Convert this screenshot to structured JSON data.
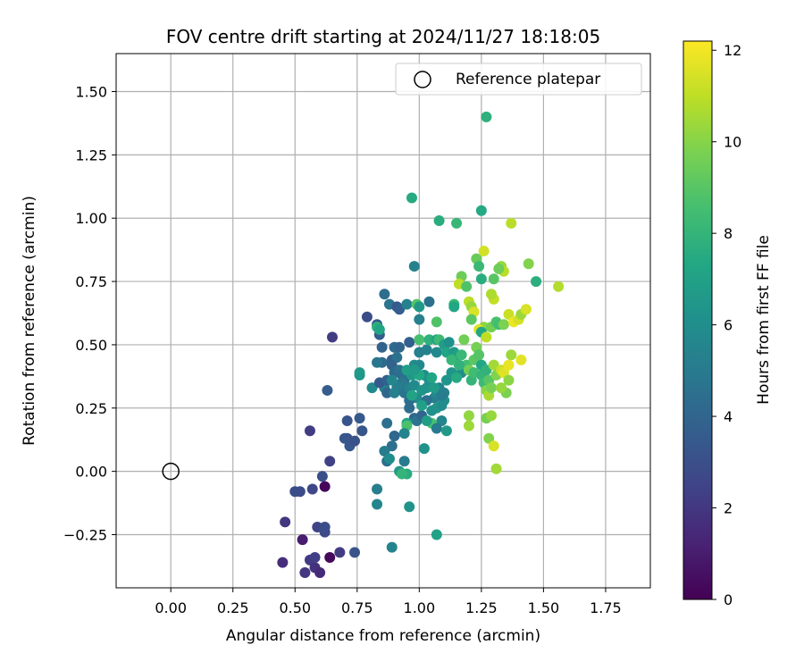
{
  "chart_data": {
    "type": "scatter",
    "title": "FOV centre drift starting at 2024/11/27 18:18:05",
    "xlabel": "Angular distance from reference (arcmin)",
    "ylabel": "Rotation from reference (arcmin)",
    "xlim": [
      -0.22,
      1.93
    ],
    "ylim": [
      -0.46,
      1.65
    ],
    "xticks": [
      "0.00",
      "0.25",
      "0.50",
      "0.75",
      "1.00",
      "1.25",
      "1.50",
      "1.75"
    ],
    "xtick_values": [
      0,
      0.25,
      0.5,
      0.75,
      1.0,
      1.25,
      1.5,
      1.75
    ],
    "yticks": [
      "−0.25",
      "0.00",
      "0.25",
      "0.50",
      "0.75",
      "1.00",
      "1.25",
      "1.50"
    ],
    "ytick_values": [
      -0.25,
      0,
      0.25,
      0.5,
      0.75,
      1.0,
      1.25,
      1.5
    ],
    "grid": true,
    "legend": {
      "label": "Reference platepar",
      "position": "upper right"
    },
    "reference_point": {
      "x": 0.0,
      "y": 0.0
    },
    "colorbar": {
      "label": "Hours from first FF file",
      "colormap": "viridis",
      "range": [
        0,
        12.2
      ],
      "ticks": [
        "0",
        "2",
        "4",
        "6",
        "8",
        "10",
        "12"
      ],
      "tick_values": [
        0,
        2,
        4,
        6,
        8,
        10,
        12
      ]
    },
    "points": [
      {
        "x": 0.62,
        "y": -0.06,
        "h": 0.2
      },
      {
        "x": 0.64,
        "y": -0.34,
        "h": 0.3
      },
      {
        "x": 0.53,
        "y": -0.27,
        "h": 1.0
      },
      {
        "x": 0.46,
        "y": -0.2,
        "h": 2.0
      },
      {
        "x": 0.45,
        "y": -0.36,
        "h": 1.6
      },
      {
        "x": 0.54,
        "y": -0.4,
        "h": 2.0
      },
      {
        "x": 0.56,
        "y": -0.35,
        "h": 2.1
      },
      {
        "x": 0.58,
        "y": -0.38,
        "h": 1.8
      },
      {
        "x": 0.6,
        "y": -0.4,
        "h": 1.5
      },
      {
        "x": 0.58,
        "y": -0.34,
        "h": 2.3
      },
      {
        "x": 0.59,
        "y": -0.22,
        "h": 2.5
      },
      {
        "x": 0.62,
        "y": -0.24,
        "h": 2.7
      },
      {
        "x": 0.62,
        "y": -0.22,
        "h": 2.9
      },
      {
        "x": 0.68,
        "y": -0.32,
        "h": 2.2
      },
      {
        "x": 0.74,
        "y": -0.32,
        "h": 3.2
      },
      {
        "x": 0.57,
        "y": -0.07,
        "h": 2.6
      },
      {
        "x": 0.61,
        "y": -0.02,
        "h": 3.0
      },
      {
        "x": 0.52,
        "y": -0.08,
        "h": 2.8
      },
      {
        "x": 0.5,
        "y": -0.08,
        "h": 2.9
      },
      {
        "x": 0.64,
        "y": 0.04,
        "h": 2.4
      },
      {
        "x": 0.56,
        "y": 0.16,
        "h": 2.2
      },
      {
        "x": 0.63,
        "y": 0.32,
        "h": 3.6
      },
      {
        "x": 0.65,
        "y": 0.53,
        "h": 2.2
      },
      {
        "x": 0.71,
        "y": 0.13,
        "h": 3.0
      },
      {
        "x": 0.72,
        "y": 0.1,
        "h": 3.4
      },
      {
        "x": 0.74,
        "y": 0.12,
        "h": 3.1
      },
      {
        "x": 0.71,
        "y": 0.2,
        "h": 3.2
      },
      {
        "x": 0.76,
        "y": 0.21,
        "h": 3.5
      },
      {
        "x": 0.77,
        "y": 0.16,
        "h": 3.3
      },
      {
        "x": 0.7,
        "y": 0.13,
        "h": 3.3
      },
      {
        "x": 0.79,
        "y": 0.61,
        "h": 2.9
      },
      {
        "x": 0.83,
        "y": 0.58,
        "h": 3.4
      },
      {
        "x": 0.84,
        "y": 0.54,
        "h": 3.6
      },
      {
        "x": 0.85,
        "y": 0.49,
        "h": 3.8
      },
      {
        "x": 0.86,
        "y": 0.7,
        "h": 4.4
      },
      {
        "x": 0.88,
        "y": 0.66,
        "h": 4.7
      },
      {
        "x": 0.85,
        "y": 0.43,
        "h": 4.2
      },
      {
        "x": 0.83,
        "y": 0.43,
        "h": 4.8
      },
      {
        "x": 0.76,
        "y": 0.38,
        "h": 6.4
      },
      {
        "x": 0.76,
        "y": 0.39,
        "h": 6.6
      },
      {
        "x": 0.81,
        "y": 0.33,
        "h": 5.8
      },
      {
        "x": 0.86,
        "y": 0.33,
        "h": 5.4
      },
      {
        "x": 0.84,
        "y": 0.35,
        "h": 3.5
      },
      {
        "x": 0.87,
        "y": 0.36,
        "h": 3.8
      },
      {
        "x": 0.87,
        "y": 0.31,
        "h": 4.1
      },
      {
        "x": 0.83,
        "y": 0.57,
        "h": 7.8
      },
      {
        "x": 0.84,
        "y": 0.56,
        "h": 7.2
      },
      {
        "x": 0.91,
        "y": 0.65,
        "h": 3.4
      },
      {
        "x": 0.92,
        "y": 0.64,
        "h": 3.6
      },
      {
        "x": 0.95,
        "y": 0.66,
        "h": 5.3
      },
      {
        "x": 0.97,
        "y": 1.08,
        "h": 7.5
      },
      {
        "x": 0.98,
        "y": 0.81,
        "h": 5.4
      },
      {
        "x": 0.99,
        "y": 0.66,
        "h": 8.9
      },
      {
        "x": 1.0,
        "y": 0.65,
        "h": 6.6
      },
      {
        "x": 1.0,
        "y": 0.6,
        "h": 5.3
      },
      {
        "x": 1.04,
        "y": 0.67,
        "h": 4.5
      },
      {
        "x": 1.08,
        "y": 0.99,
        "h": 7.6
      },
      {
        "x": 1.15,
        "y": 0.98,
        "h": 8.1
      },
      {
        "x": 1.25,
        "y": 1.03,
        "h": 7.4
      },
      {
        "x": 1.27,
        "y": 1.4,
        "h": 7.8
      },
      {
        "x": 1.37,
        "y": 0.98,
        "h": 10.9
      },
      {
        "x": 0.89,
        "y": 0.44,
        "h": 3.8
      },
      {
        "x": 0.91,
        "y": 0.45,
        "h": 4.6
      },
      {
        "x": 0.9,
        "y": 0.49,
        "h": 4.3
      },
      {
        "x": 0.92,
        "y": 0.49,
        "h": 4.0
      },
      {
        "x": 0.89,
        "y": 0.42,
        "h": 3.9
      },
      {
        "x": 0.9,
        "y": 0.39,
        "h": 4.2
      },
      {
        "x": 0.92,
        "y": 0.4,
        "h": 4.6
      },
      {
        "x": 0.93,
        "y": 0.38,
        "h": 4.4
      },
      {
        "x": 0.94,
        "y": 0.36,
        "h": 4.5
      },
      {
        "x": 0.93,
        "y": 0.35,
        "h": 4.9
      },
      {
        "x": 0.91,
        "y": 0.33,
        "h": 5.2
      },
      {
        "x": 0.89,
        "y": 0.36,
        "h": 5.6
      },
      {
        "x": 0.9,
        "y": 0.31,
        "h": 5.3
      },
      {
        "x": 0.94,
        "y": 0.31,
        "h": 4.7
      },
      {
        "x": 0.96,
        "y": 0.33,
        "h": 5.4
      },
      {
        "x": 0.98,
        "y": 0.34,
        "h": 5.8
      },
      {
        "x": 0.99,
        "y": 0.29,
        "h": 5.9
      },
      {
        "x": 0.96,
        "y": 0.28,
        "h": 4.4
      },
      {
        "x": 0.97,
        "y": 0.38,
        "h": 6.6
      },
      {
        "x": 0.98,
        "y": 0.42,
        "h": 5.9
      },
      {
        "x": 1.0,
        "y": 0.42,
        "h": 5.7
      },
      {
        "x": 1.02,
        "y": 0.38,
        "h": 6.0
      },
      {
        "x": 1.03,
        "y": 0.33,
        "h": 6.4
      },
      {
        "x": 1.04,
        "y": 0.36,
        "h": 6.1
      },
      {
        "x": 1.01,
        "y": 0.32,
        "h": 6.3
      },
      {
        "x": 1.06,
        "y": 0.29,
        "h": 5.2
      },
      {
        "x": 1.07,
        "y": 0.31,
        "h": 5.7
      },
      {
        "x": 1.08,
        "y": 0.33,
        "h": 5.5
      },
      {
        "x": 1.1,
        "y": 0.28,
        "h": 6.0
      },
      {
        "x": 1.1,
        "y": 0.31,
        "h": 5.3
      },
      {
        "x": 1.05,
        "y": 0.37,
        "h": 7.2
      },
      {
        "x": 1.06,
        "y": 0.33,
        "h": 6.7
      },
      {
        "x": 1.07,
        "y": 0.25,
        "h": 6.6
      },
      {
        "x": 1.05,
        "y": 0.24,
        "h": 6.2
      },
      {
        "x": 1.09,
        "y": 0.26,
        "h": 5.9
      },
      {
        "x": 1.03,
        "y": 0.28,
        "h": 4.6
      },
      {
        "x": 1.09,
        "y": 0.3,
        "h": 5.1
      },
      {
        "x": 1.09,
        "y": 0.2,
        "h": 5.6
      },
      {
        "x": 0.96,
        "y": 0.25,
        "h": 4.3
      },
      {
        "x": 0.98,
        "y": 0.21,
        "h": 4.1
      },
      {
        "x": 0.99,
        "y": 0.2,
        "h": 4.7
      },
      {
        "x": 1.01,
        "y": 0.22,
        "h": 4.0
      },
      {
        "x": 1.05,
        "y": 0.19,
        "h": 8.6
      },
      {
        "x": 1.03,
        "y": 0.2,
        "h": 6.8
      },
      {
        "x": 0.95,
        "y": 0.19,
        "h": 7.0
      },
      {
        "x": 0.95,
        "y": 0.18,
        "h": 8.7
      },
      {
        "x": 0.94,
        "y": 0.15,
        "h": 5.5
      },
      {
        "x": 0.9,
        "y": 0.14,
        "h": 4.1
      },
      {
        "x": 0.89,
        "y": 0.1,
        "h": 4.5
      },
      {
        "x": 0.86,
        "y": 0.08,
        "h": 5.1
      },
      {
        "x": 0.87,
        "y": 0.04,
        "h": 4.4
      },
      {
        "x": 0.88,
        "y": 0.05,
        "h": 5.9
      },
      {
        "x": 0.87,
        "y": 0.19,
        "h": 4.5
      },
      {
        "x": 0.83,
        "y": -0.07,
        "h": 5.2
      },
      {
        "x": 0.83,
        "y": -0.13,
        "h": 5.6
      },
      {
        "x": 0.89,
        "y": -0.3,
        "h": 5.5
      },
      {
        "x": 0.92,
        "y": 0.0,
        "h": 6.5
      },
      {
        "x": 0.95,
        "y": -0.01,
        "h": 7.6
      },
      {
        "x": 0.93,
        "y": -0.01,
        "h": 8.0
      },
      {
        "x": 0.96,
        "y": -0.14,
        "h": 6.3
      },
      {
        "x": 0.94,
        "y": 0.04,
        "h": 5.0
      },
      {
        "x": 1.02,
        "y": 0.09,
        "h": 6.2
      },
      {
        "x": 1.07,
        "y": 0.17,
        "h": 5.0
      },
      {
        "x": 1.11,
        "y": 0.16,
        "h": 6.6
      },
      {
        "x": 1.07,
        "y": -0.25,
        "h": 7.0
      },
      {
        "x": 0.96,
        "y": 0.51,
        "h": 3.8
      },
      {
        "x": 1.0,
        "y": 0.52,
        "h": 8.6
      },
      {
        "x": 1.0,
        "y": 0.47,
        "h": 5.3
      },
      {
        "x": 1.03,
        "y": 0.48,
        "h": 5.4
      },
      {
        "x": 1.04,
        "y": 0.52,
        "h": 7.8
      },
      {
        "x": 1.07,
        "y": 0.52,
        "h": 7.0
      },
      {
        "x": 1.07,
        "y": 0.59,
        "h": 8.8
      },
      {
        "x": 1.08,
        "y": 0.52,
        "h": 8.3
      },
      {
        "x": 1.07,
        "y": 0.47,
        "h": 5.8
      },
      {
        "x": 1.1,
        "y": 0.5,
        "h": 6.8
      },
      {
        "x": 1.11,
        "y": 0.47,
        "h": 7.2
      },
      {
        "x": 1.14,
        "y": 0.47,
        "h": 6.6
      },
      {
        "x": 1.15,
        "y": 0.46,
        "h": 6.9
      },
      {
        "x": 1.12,
        "y": 0.51,
        "h": 6.1
      },
      {
        "x": 1.14,
        "y": 0.66,
        "h": 8.2
      },
      {
        "x": 1.14,
        "y": 0.65,
        "h": 7.3
      },
      {
        "x": 1.17,
        "y": 0.77,
        "h": 9.5
      },
      {
        "x": 1.16,
        "y": 0.74,
        "h": 11.0
      },
      {
        "x": 1.19,
        "y": 0.73,
        "h": 8.8
      },
      {
        "x": 1.2,
        "y": 0.67,
        "h": 10.9
      },
      {
        "x": 1.21,
        "y": 0.65,
        "h": 10.3
      },
      {
        "x": 1.22,
        "y": 0.63,
        "h": 11.5
      },
      {
        "x": 1.21,
        "y": 0.6,
        "h": 9.1
      },
      {
        "x": 1.23,
        "y": 0.84,
        "h": 9.4
      },
      {
        "x": 1.24,
        "y": 0.81,
        "h": 8.2
      },
      {
        "x": 1.26,
        "y": 0.87,
        "h": 11.4
      },
      {
        "x": 1.25,
        "y": 0.76,
        "h": 7.6
      },
      {
        "x": 1.3,
        "y": 0.68,
        "h": 11.1
      },
      {
        "x": 1.3,
        "y": 0.76,
        "h": 9.0
      },
      {
        "x": 1.33,
        "y": 0.81,
        "h": 10.3
      },
      {
        "x": 1.34,
        "y": 0.79,
        "h": 10.9
      },
      {
        "x": 1.32,
        "y": 0.8,
        "h": 9.5
      },
      {
        "x": 1.29,
        "y": 0.7,
        "h": 10.7
      },
      {
        "x": 1.26,
        "y": 0.57,
        "h": 10.1
      },
      {
        "x": 1.24,
        "y": 0.56,
        "h": 11.6
      },
      {
        "x": 1.25,
        "y": 0.55,
        "h": 7.3
      },
      {
        "x": 1.27,
        "y": 0.53,
        "h": 11.0
      },
      {
        "x": 1.29,
        "y": 0.57,
        "h": 9.6
      },
      {
        "x": 1.31,
        "y": 0.59,
        "h": 8.7
      },
      {
        "x": 1.32,
        "y": 0.58,
        "h": 8.5
      },
      {
        "x": 1.34,
        "y": 0.58,
        "h": 9.8
      },
      {
        "x": 1.36,
        "y": 0.62,
        "h": 11.2
      },
      {
        "x": 1.38,
        "y": 0.59,
        "h": 11.9
      },
      {
        "x": 1.4,
        "y": 0.6,
        "h": 11.4
      },
      {
        "x": 1.41,
        "y": 0.62,
        "h": 10.4
      },
      {
        "x": 1.43,
        "y": 0.64,
        "h": 11.5
      },
      {
        "x": 1.44,
        "y": 0.82,
        "h": 9.9
      },
      {
        "x": 1.47,
        "y": 0.75,
        "h": 7.7
      },
      {
        "x": 1.56,
        "y": 0.73,
        "h": 10.8
      },
      {
        "x": 1.18,
        "y": 0.52,
        "h": 9.6
      },
      {
        "x": 1.17,
        "y": 0.46,
        "h": 8.2
      },
      {
        "x": 1.18,
        "y": 0.4,
        "h": 9.3
      },
      {
        "x": 1.17,
        "y": 0.39,
        "h": 6.0
      },
      {
        "x": 1.19,
        "y": 0.42,
        "h": 8.5
      },
      {
        "x": 1.2,
        "y": 0.4,
        "h": 9.6
      },
      {
        "x": 1.21,
        "y": 0.36,
        "h": 8.0
      },
      {
        "x": 1.22,
        "y": 0.39,
        "h": 8.4
      },
      {
        "x": 1.22,
        "y": 0.44,
        "h": 9.1
      },
      {
        "x": 1.23,
        "y": 0.49,
        "h": 9.7
      },
      {
        "x": 1.24,
        "y": 0.46,
        "h": 8.9
      },
      {
        "x": 1.25,
        "y": 0.42,
        "h": 7.3
      },
      {
        "x": 1.25,
        "y": 0.38,
        "h": 8.0
      },
      {
        "x": 1.26,
        "y": 0.35,
        "h": 8.3
      },
      {
        "x": 1.27,
        "y": 0.4,
        "h": 7.9
      },
      {
        "x": 1.28,
        "y": 0.36,
        "h": 9.0
      },
      {
        "x": 1.27,
        "y": 0.32,
        "h": 10.0
      },
      {
        "x": 1.28,
        "y": 0.3,
        "h": 10.6
      },
      {
        "x": 1.29,
        "y": 0.33,
        "h": 9.7
      },
      {
        "x": 1.3,
        "y": 0.42,
        "h": 10.5
      },
      {
        "x": 1.31,
        "y": 0.38,
        "h": 9.9
      },
      {
        "x": 1.33,
        "y": 0.4,
        "h": 11.2
      },
      {
        "x": 1.34,
        "y": 0.39,
        "h": 11.6
      },
      {
        "x": 1.35,
        "y": 0.31,
        "h": 9.8
      },
      {
        "x": 1.33,
        "y": 0.33,
        "h": 10.3
      },
      {
        "x": 1.36,
        "y": 0.36,
        "h": 10.1
      },
      {
        "x": 1.37,
        "y": 0.46,
        "h": 10.4
      },
      {
        "x": 1.36,
        "y": 0.42,
        "h": 11.8
      },
      {
        "x": 1.41,
        "y": 0.44,
        "h": 11.7
      },
      {
        "x": 1.2,
        "y": 0.22,
        "h": 10.2
      },
      {
        "x": 1.27,
        "y": 0.21,
        "h": 9.7
      },
      {
        "x": 1.29,
        "y": 0.22,
        "h": 10.3
      },
      {
        "x": 1.2,
        "y": 0.18,
        "h": 10.4
      },
      {
        "x": 1.28,
        "y": 0.13,
        "h": 9.9
      },
      {
        "x": 1.3,
        "y": 0.1,
        "h": 11.5
      },
      {
        "x": 1.31,
        "y": 0.01,
        "h": 10.5
      },
      {
        "x": 1.0,
        "y": 0.38,
        "h": 7.3
      },
      {
        "x": 0.97,
        "y": 0.3,
        "h": 7.1
      },
      {
        "x": 1.01,
        "y": 0.26,
        "h": 6.9
      },
      {
        "x": 1.11,
        "y": 0.36,
        "h": 6.3
      },
      {
        "x": 1.13,
        "y": 0.39,
        "h": 6.4
      },
      {
        "x": 0.95,
        "y": 0.4,
        "h": 6.9
      },
      {
        "x": 0.98,
        "y": 0.4,
        "h": 6.7
      },
      {
        "x": 1.15,
        "y": 0.37,
        "h": 7.5
      },
      {
        "x": 1.16,
        "y": 0.42,
        "h": 7.9
      },
      {
        "x": 1.13,
        "y": 0.44,
        "h": 8.1
      }
    ]
  }
}
